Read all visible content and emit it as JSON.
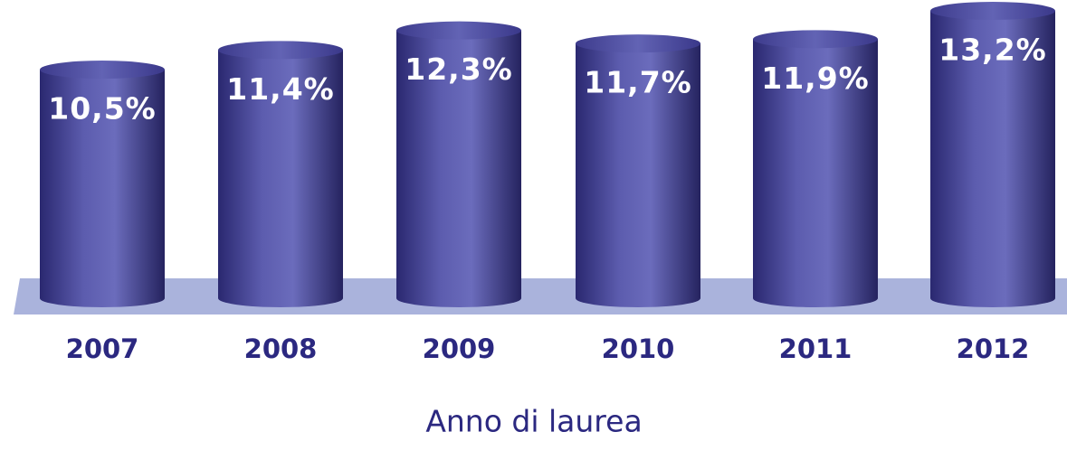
{
  "chart_data": {
    "type": "bar",
    "categories": [
      "2007",
      "2008",
      "2009",
      "2010",
      "2011",
      "2012"
    ],
    "values": [
      10.5,
      11.4,
      12.3,
      11.7,
      11.9,
      13.2
    ],
    "value_labels": [
      "10,5%",
      "11,4%",
      "12,3%",
      "11,7%",
      "11,9%",
      "13,2%"
    ],
    "color": "#4f4ea0",
    "x_label": "Anno di laurea"
  }
}
